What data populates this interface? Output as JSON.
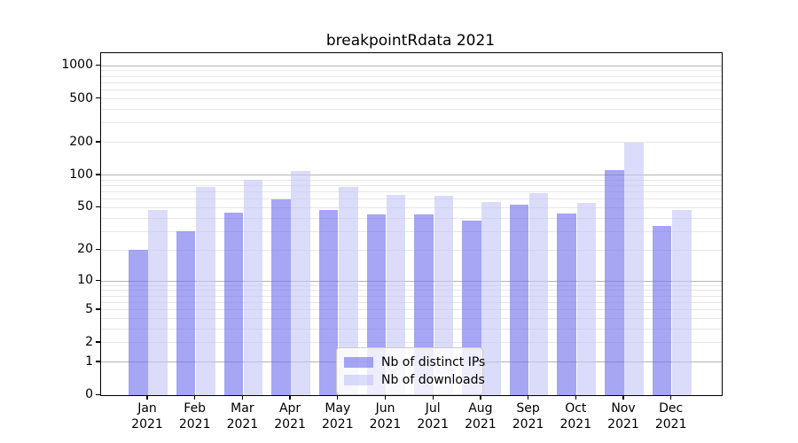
{
  "title": "breakpointRdata 2021",
  "chart_data": {
    "type": "bar",
    "title": "breakpointRdata 2021",
    "categories": [
      "Jan",
      "Feb",
      "Mar",
      "Apr",
      "May",
      "Jun",
      "Jul",
      "Aug",
      "Sep",
      "Oct",
      "Nov",
      "Dec"
    ],
    "x_year_label": "2021",
    "series": [
      {
        "name": "Nb of distinct IPs",
        "color": "rgba(112,112,238,0.62)",
        "values": [
          20,
          30,
          45,
          60,
          48,
          43,
          43,
          38,
          53,
          44,
          112,
          34
        ]
      },
      {
        "name": "Nb of downloads",
        "color": "rgba(197,197,247,0.62)",
        "values": [
          48,
          78,
          90,
          110,
          78,
          66,
          65,
          57,
          68,
          55,
          200,
          48
        ]
      }
    ],
    "xlabel": "",
    "ylabel": "",
    "y_scale": "log1p",
    "y_ticks": [
      0,
      1,
      2,
      5,
      10,
      20,
      50,
      100,
      200,
      500,
      1000
    ],
    "y_minor_gridlines": [
      2,
      3,
      4,
      5,
      6,
      7,
      8,
      9,
      20,
      30,
      40,
      50,
      60,
      70,
      80,
      90,
      200,
      300,
      400,
      500,
      600,
      700,
      800,
      900
    ],
    "y_major_gridlines": [
      1,
      10,
      100,
      1000
    ],
    "ylim": [
      0,
      1300
    ],
    "grid": "horizontal",
    "legend_position": "bottom-center-inside",
    "colors": {
      "ips_bar": "rgba(112,112,238,0.62)",
      "downloads_bar": "rgba(197,197,247,0.62)",
      "major_grid": "#b4b4b4",
      "minor_grid": "#e7e7e7",
      "axis": "#000000",
      "legend_border": "#cccccc"
    }
  }
}
